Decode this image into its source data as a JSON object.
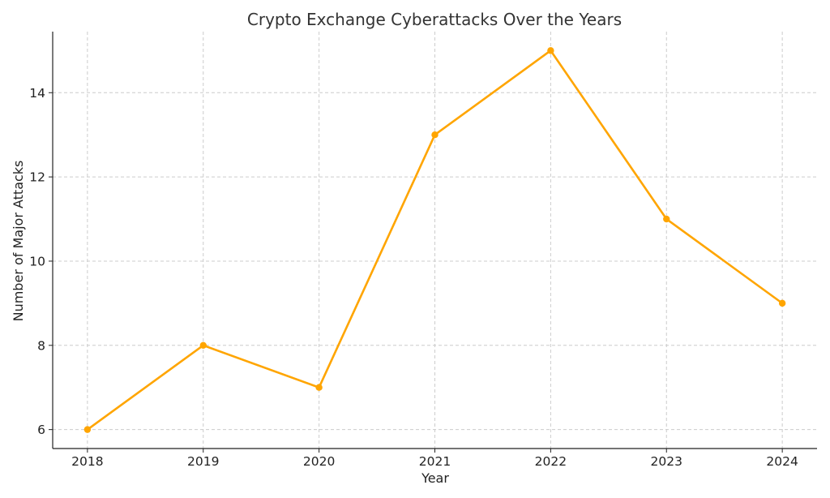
{
  "chart_data": {
    "type": "line",
    "title": "Crypto Exchange Cyberattacks Over the Years",
    "xlabel": "Year",
    "ylabel": "Number of Major Attacks",
    "x": [
      2018,
      2019,
      2020,
      2021,
      2022,
      2023,
      2024
    ],
    "series": [
      {
        "values": [
          6,
          8,
          7,
          13,
          15,
          11,
          9
        ]
      }
    ],
    "xticks": [
      "2018",
      "2019",
      "2020",
      "2021",
      "2022",
      "2023",
      "2024"
    ],
    "yticks": [
      "6",
      "8",
      "10",
      "12",
      "14"
    ],
    "ylim": [
      5.55,
      15.45
    ],
    "xlim": [
      2017.7,
      2024.3
    ],
    "grid": true,
    "colors": {
      "line": "#FFA500",
      "grid": "#cccccc",
      "axis": "#222222",
      "title": "#333333"
    }
  }
}
